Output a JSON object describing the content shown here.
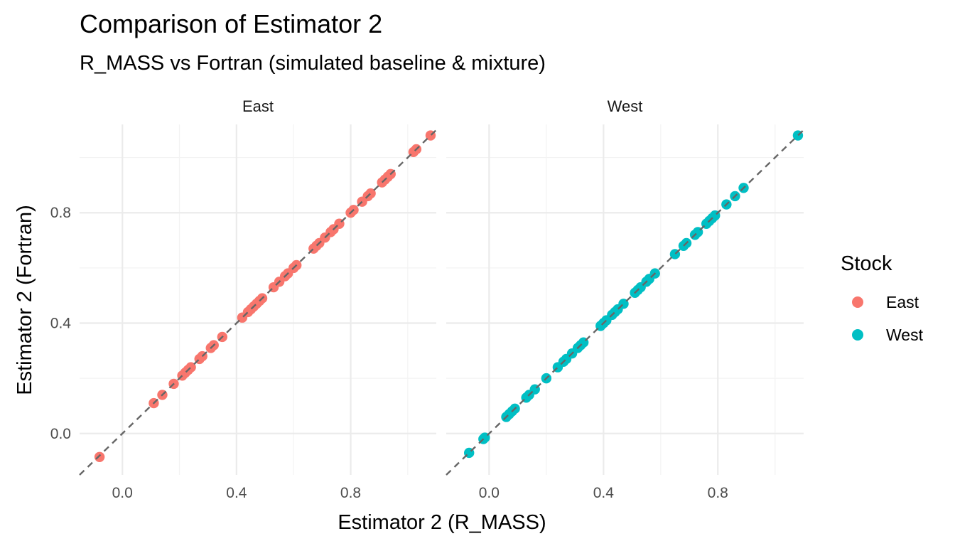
{
  "chart_data": {
    "type": "scatter",
    "title": "Comparison of Estimator 2",
    "subtitle": "R_MASS vs Fortran (simulated baseline & mixture)",
    "xlabel": "Estimator 2 (R_MASS)",
    "ylabel": "Estimator 2 (Fortran)",
    "xlim": [
      -0.15,
      1.1
    ],
    "ylim": [
      -0.15,
      1.12
    ],
    "x_ticks": [
      "0.0",
      "0.4",
      "0.8"
    ],
    "y_ticks": [
      "0.0",
      "0.4",
      "0.8"
    ],
    "x_tick_values": [
      0.0,
      0.4,
      0.8
    ],
    "y_tick_values": [
      0.0,
      0.4,
      0.8
    ],
    "grid": true,
    "reference_line": "y = x (dashed)",
    "legend": {
      "title": "Stock",
      "position": "right",
      "entries": [
        {
          "label": "East",
          "color": "#F8766D"
        },
        {
          "label": "West",
          "color": "#00BFC4"
        }
      ]
    },
    "panels": [
      {
        "name": "East",
        "color": "#F8766D",
        "points": [
          [
            -0.08,
            -0.085
          ],
          [
            0.11,
            0.11
          ],
          [
            0.14,
            0.14
          ],
          [
            0.18,
            0.18
          ],
          [
            0.21,
            0.21
          ],
          [
            0.22,
            0.22
          ],
          [
            0.23,
            0.23
          ],
          [
            0.24,
            0.24
          ],
          [
            0.27,
            0.27
          ],
          [
            0.28,
            0.28
          ],
          [
            0.31,
            0.31
          ],
          [
            0.32,
            0.32
          ],
          [
            0.35,
            0.35
          ],
          [
            0.42,
            0.42
          ],
          [
            0.44,
            0.44
          ],
          [
            0.45,
            0.45
          ],
          [
            0.46,
            0.46
          ],
          [
            0.47,
            0.47
          ],
          [
            0.48,
            0.48
          ],
          [
            0.49,
            0.49
          ],
          [
            0.53,
            0.53
          ],
          [
            0.55,
            0.55
          ],
          [
            0.57,
            0.57
          ],
          [
            0.58,
            0.58
          ],
          [
            0.6,
            0.6
          ],
          [
            0.61,
            0.61
          ],
          [
            0.67,
            0.67
          ],
          [
            0.68,
            0.68
          ],
          [
            0.69,
            0.69
          ],
          [
            0.71,
            0.71
          ],
          [
            0.73,
            0.73
          ],
          [
            0.74,
            0.74
          ],
          [
            0.76,
            0.76
          ],
          [
            0.8,
            0.8
          ],
          [
            0.81,
            0.81
          ],
          [
            0.84,
            0.84
          ],
          [
            0.86,
            0.86
          ],
          [
            0.87,
            0.87
          ],
          [
            0.91,
            0.91
          ],
          [
            0.92,
            0.92
          ],
          [
            0.93,
            0.93
          ],
          [
            0.94,
            0.94
          ],
          [
            1.02,
            1.02
          ],
          [
            1.03,
            1.03
          ],
          [
            1.08,
            1.08
          ]
        ]
      },
      {
        "name": "West",
        "color": "#00BFC4",
        "points": [
          [
            -0.07,
            -0.07
          ],
          [
            -0.02,
            -0.02
          ],
          [
            -0.015,
            -0.015
          ],
          [
            0.06,
            0.06
          ],
          [
            0.07,
            0.07
          ],
          [
            0.08,
            0.08
          ],
          [
            0.09,
            0.09
          ],
          [
            0.13,
            0.13
          ],
          [
            0.14,
            0.14
          ],
          [
            0.16,
            0.16
          ],
          [
            0.2,
            0.2
          ],
          [
            0.24,
            0.24
          ],
          [
            0.26,
            0.26
          ],
          [
            0.27,
            0.27
          ],
          [
            0.29,
            0.29
          ],
          [
            0.31,
            0.31
          ],
          [
            0.32,
            0.32
          ],
          [
            0.33,
            0.33
          ],
          [
            0.39,
            0.39
          ],
          [
            0.4,
            0.4
          ],
          [
            0.41,
            0.41
          ],
          [
            0.43,
            0.43
          ],
          [
            0.44,
            0.44
          ],
          [
            0.45,
            0.45
          ],
          [
            0.47,
            0.47
          ],
          [
            0.51,
            0.51
          ],
          [
            0.52,
            0.52
          ],
          [
            0.53,
            0.53
          ],
          [
            0.55,
            0.55
          ],
          [
            0.56,
            0.56
          ],
          [
            0.58,
            0.58
          ],
          [
            0.65,
            0.65
          ],
          [
            0.68,
            0.68
          ],
          [
            0.69,
            0.69
          ],
          [
            0.72,
            0.72
          ],
          [
            0.73,
            0.73
          ],
          [
            0.76,
            0.76
          ],
          [
            0.77,
            0.77
          ],
          [
            0.78,
            0.78
          ],
          [
            0.79,
            0.79
          ],
          [
            0.83,
            0.83
          ],
          [
            0.86,
            0.86
          ],
          [
            0.89,
            0.89
          ],
          [
            1.08,
            1.08
          ]
        ]
      }
    ]
  }
}
